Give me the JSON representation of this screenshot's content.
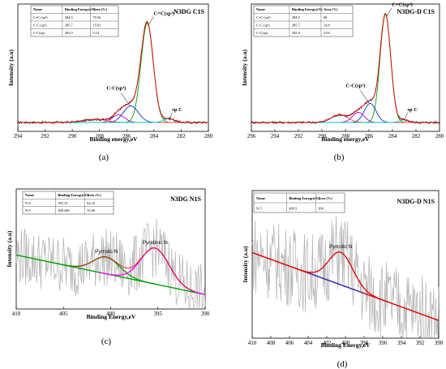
{
  "chart_data": [
    {
      "panel_label": "(a)",
      "type": "line",
      "title": "N3DG C1S",
      "xlabel": "Binding energy,eV",
      "ylabel": "Intensity (a.u)",
      "xlim": [
        294,
        280
      ],
      "x_ticks": [
        "294",
        "292",
        "290",
        "288",
        "286",
        "284",
        "282",
        "280"
      ],
      "table": {
        "headers": [
          "Name",
          "Binding Energy(eV)",
          "Area (%)"
        ],
        "rows": [
          [
            "C=C (sp²)",
            "284.5",
            "70.56"
          ],
          [
            "C-C (sp³)",
            "285.7",
            "15.81"
          ],
          [
            "C-C(sp)",
            "282.9",
            "3.14"
          ]
        ]
      },
      "annotations": [
        "C=C(sp²)",
        "C-C(sp³)",
        "sp C"
      ],
      "peaks": [
        {
          "center": 284.5,
          "height": 0.78,
          "width": 0.45
        },
        {
          "center": 285.7,
          "height": 0.13,
          "width": 0.55
        },
        {
          "center": 286.6,
          "height": 0.06,
          "width": 0.45
        },
        {
          "center": 288.3,
          "height": 0.025,
          "width": 0.8
        },
        {
          "center": 282.9,
          "height": 0.03,
          "width": 0.4
        }
      ]
    },
    {
      "panel_label": "(b)",
      "type": "line",
      "title": "N3DG-D C1S",
      "xlabel": "Binding energy,eV",
      "ylabel": "Intensity (a.u)",
      "xlim": [
        296,
        280
      ],
      "x_ticks": [
        "296",
        "294",
        "292",
        "290",
        "288",
        "286",
        "284",
        "282",
        "280"
      ],
      "table": {
        "headers": [
          "Name",
          "Binding Energy(eV)",
          "Area (%)"
        ],
        "rows": [
          [
            "C=C (sp²)",
            "284.5",
            "68"
          ],
          [
            "C-C (sp³)",
            "285.7",
            "14.8"
          ],
          [
            "C-C(sp)",
            "282.9",
            "3.04"
          ]
        ]
      },
      "annotations": [
        "C=C(sp²)",
        "C-C(sp³)",
        "sp C"
      ],
      "peaks": [
        {
          "center": 284.6,
          "height": 0.85,
          "width": 0.45
        },
        {
          "center": 285.9,
          "height": 0.15,
          "width": 0.5
        },
        {
          "center": 286.9,
          "height": 0.08,
          "width": 0.5
        },
        {
          "center": 288.5,
          "height": 0.06,
          "width": 0.7
        },
        {
          "center": 283.0,
          "height": 0.02,
          "width": 0.4
        }
      ]
    },
    {
      "panel_label": "(c)",
      "type": "line",
      "title": "N3DG N1S",
      "xlabel": "Binding Energy,eV",
      "ylabel": "Intensity (a.u)",
      "xlim": [
        410,
        390
      ],
      "x_ticks": [
        "410",
        "405",
        "400",
        "395",
        "390"
      ],
      "table": {
        "headers": [
          "Name",
          "Binding Energy(eV)",
          "Area (%)"
        ],
        "rows": [
          [
            "N-6",
            "395.32",
            "64.32"
          ],
          [
            "N-5",
            "400.448",
            "35.68"
          ]
        ]
      },
      "annotations": [
        "Pyrrolic N",
        "Pyridinic N"
      ],
      "peaks": [
        {
          "center": 400.45,
          "height": 0.14,
          "width": 1.4
        },
        {
          "center": 395.3,
          "height": 0.3,
          "width": 1.5
        }
      ]
    },
    {
      "panel_label": "(d)",
      "type": "line",
      "title": "N3DG-D N1S",
      "xlabel": "Binding Energy,eV",
      "ylabel": "Intensity (a.u)",
      "xlim": [
        410,
        390
      ],
      "x_ticks": [
        "410",
        "408",
        "406",
        "404",
        "402",
        "400",
        "398",
        "396",
        "394",
        "392",
        "390"
      ],
      "table": {
        "headers": [
          "Name",
          "Binding Energy(eV)",
          "Area (%)"
        ],
        "rows": [
          [
            "N-5",
            "400.5",
            "100"
          ]
        ]
      },
      "annotations": [
        "Pyrrolic N"
      ],
      "peaks": [
        {
          "center": 400.5,
          "height": 0.22,
          "width": 1.3
        }
      ]
    }
  ]
}
